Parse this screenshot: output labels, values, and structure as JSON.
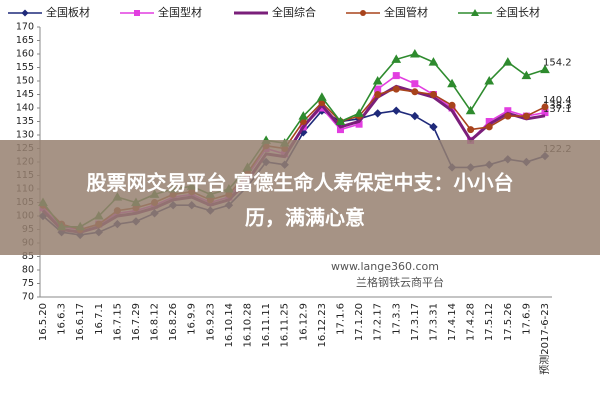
{
  "chart_data": {
    "type": "line",
    "categories": [
      "16.5.20",
      "16.6.3",
      "16.6.17",
      "16.7.1",
      "16.7.15",
      "16.7.29",
      "16.8.12",
      "16.8.26",
      "16.9.9",
      "16.9.23",
      "16.10.14",
      "16.10.28",
      "16.11.11",
      "16.11.25",
      "16.12.9",
      "16.12.23",
      "17.1.6",
      "17.1.20",
      "17.2.17",
      "17.3.3",
      "17.3.17",
      "17.3.31",
      "17.4.14",
      "17.4.28",
      "17.5.12",
      "17.5.26",
      "17.6.9",
      "预测2017-6-23"
    ],
    "series": [
      {
        "name": "全国板材",
        "color": "#1f2a7a",
        "marker": "diamond",
        "values": [
          100,
          94,
          93,
          94,
          97,
          98,
          101,
          104,
          104,
          102,
          104,
          111,
          120,
          119,
          131,
          139,
          135,
          136,
          138,
          139,
          137,
          133,
          118,
          118,
          119,
          121,
          120,
          122.2
        ]
      },
      {
        "name": "全国型材",
        "color": "#e23ee0",
        "marker": "square",
        "values": [
          103,
          96,
          95,
          97,
          101,
          102,
          104,
          107,
          108,
          105,
          107,
          115,
          125,
          123,
          133,
          140,
          132,
          134,
          147,
          152,
          149,
          145,
          140,
          128,
          135,
          139,
          137,
          138.3
        ]
      },
      {
        "name": "全国综合",
        "color": "#7a1f7a",
        "marker": "none",
        "values": [
          102,
          95,
          94,
          96,
          100,
          101,
          103,
          106,
          107,
          104,
          106,
          113,
          123,
          122,
          133,
          141,
          133,
          135,
          144,
          148,
          146,
          144,
          139,
          128,
          134,
          138,
          136,
          137.1
        ]
      },
      {
        "name": "全国管材",
        "color": "#a8431c",
        "marker": "circle",
        "values": [
          104,
          97,
          95,
          97,
          102,
          103,
          105,
          108,
          109,
          106,
          108,
          116,
          126,
          125,
          135,
          142,
          135,
          137,
          145,
          147,
          146,
          145,
          141,
          132,
          133,
          137,
          137,
          140.4
        ]
      },
      {
        "name": "全国长材",
        "color": "#2e8b2e",
        "marker": "triangle",
        "values": [
          105,
          96,
          96,
          100,
          107,
          105,
          108,
          110,
          111,
          108,
          110,
          118,
          128,
          127,
          137,
          144,
          135,
          138,
          150,
          158,
          160,
          157,
          149,
          139,
          150,
          157,
          152,
          154.2
        ]
      }
    ],
    "ylim": [
      70,
      170
    ],
    "yticks": [
      70,
      75,
      80,
      85,
      90,
      95,
      100,
      105,
      110,
      115,
      120,
      125,
      130,
      135,
      140,
      145,
      150,
      155,
      160,
      165,
      170
    ],
    "grid": false,
    "watermarks": [
      "www.lange360.com",
      "兰格钢铁云商平台"
    ]
  },
  "banner": {
    "lines": [
      "股票网交易平台 富德生命人寿保定中支：小小台",
      "历，满满心意"
    ]
  }
}
